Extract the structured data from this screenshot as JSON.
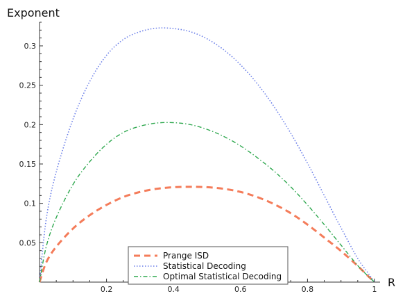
{
  "chart_data": {
    "type": "line",
    "xlabel": "R",
    "ylabel": "Exponent",
    "xlim": [
      0,
      1
    ],
    "ylim": [
      0,
      0.33
    ],
    "x_ticks": [
      "0.2",
      "0.4",
      "0.6",
      "0.8",
      "1"
    ],
    "y_ticks": [
      "0.05",
      "0.1",
      "0.15",
      "0.2",
      "0.25",
      "0.3"
    ],
    "grid": false,
    "legend_position": "bottom-center",
    "x": [
      0,
      0.02,
      0.05,
      0.1,
      0.15,
      0.2,
      0.25,
      0.3,
      0.35,
      0.4,
      0.45,
      0.5,
      0.55,
      0.6,
      0.65,
      0.7,
      0.75,
      0.8,
      0.85,
      0.9,
      0.95,
      0.98,
      1
    ],
    "series": [
      {
        "name": "Prange ISD",
        "color": "#f47c5a",
        "dash": "dashed",
        "values": [
          0,
          0.025,
          0.045,
          0.068,
          0.085,
          0.098,
          0.108,
          0.1145,
          0.1185,
          0.1205,
          0.121,
          0.1205,
          0.1185,
          0.1145,
          0.108,
          0.099,
          0.0875,
          0.073,
          0.0565,
          0.0395,
          0.0205,
          0.008,
          0
        ]
      },
      {
        "name": "Statistical Decoding",
        "color": "#6a7ee8",
        "dash": "dotted",
        "values": [
          0,
          0.08,
          0.14,
          0.207,
          0.255,
          0.288,
          0.308,
          0.318,
          0.3225,
          0.322,
          0.318,
          0.309,
          0.295,
          0.276,
          0.252,
          0.223,
          0.189,
          0.151,
          0.11,
          0.069,
          0.03,
          0.012,
          0
        ]
      },
      {
        "name": "Optimal Statistical Decoding",
        "color": "#2fa84f",
        "dash": "dashdot",
        "values": [
          0,
          0.045,
          0.082,
          0.124,
          0.153,
          0.175,
          0.19,
          0.198,
          0.202,
          0.2025,
          0.2,
          0.194,
          0.185,
          0.173,
          0.158,
          0.141,
          0.121,
          0.098,
          0.073,
          0.047,
          0.021,
          0.008,
          0
        ]
      }
    ]
  }
}
